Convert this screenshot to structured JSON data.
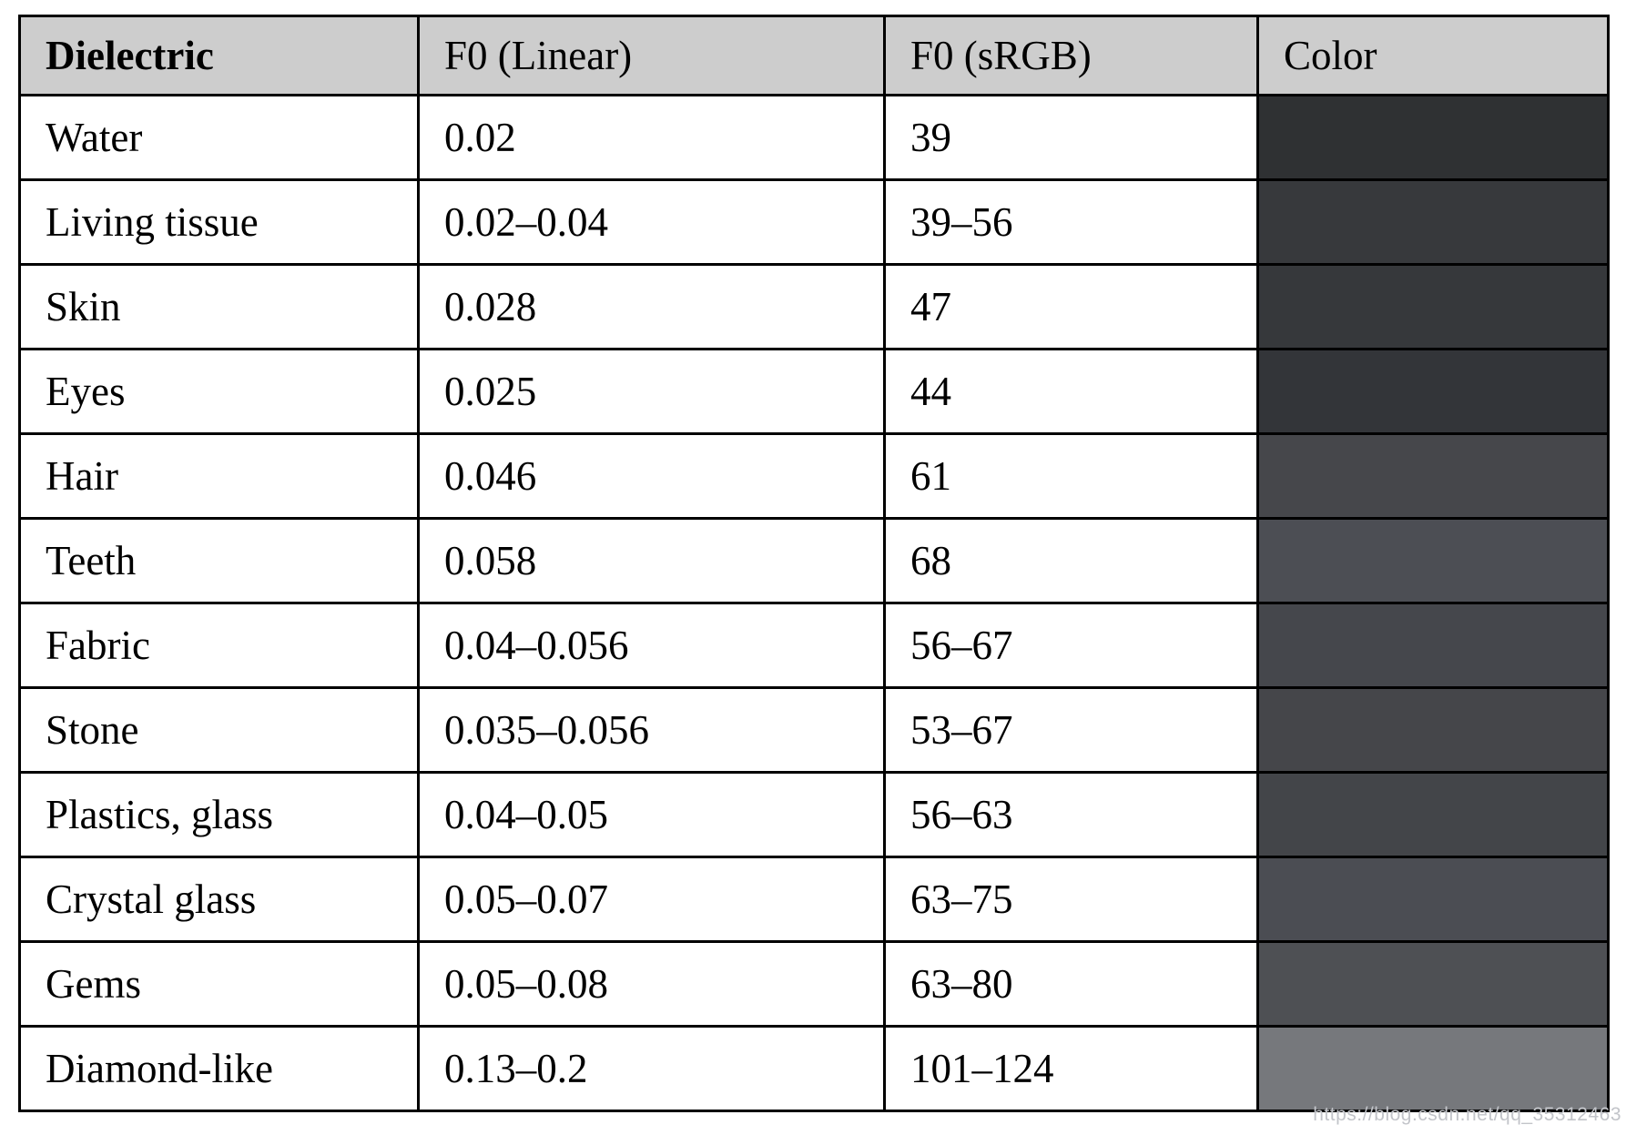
{
  "chart_data": {
    "type": "table",
    "title": "",
    "columns": [
      "Dielectric",
      "F0 (Linear)",
      "F0 (sRGB)",
      "Color"
    ],
    "rows": [
      {
        "dielectric": "Water",
        "f0_linear": "0.02",
        "f0_srgb": "39",
        "color_hex": "#2f3133"
      },
      {
        "dielectric": "Living tissue",
        "f0_linear": "0.02–0.04",
        "f0_srgb": "39–56",
        "color_hex": "#37393c"
      },
      {
        "dielectric": "Skin",
        "f0_linear": "0.028",
        "f0_srgb": "47",
        "color_hex": "#36383b"
      },
      {
        "dielectric": "Eyes",
        "f0_linear": "0.025",
        "f0_srgb": "44",
        "color_hex": "#333539"
      },
      {
        "dielectric": "Hair",
        "f0_linear": "0.046",
        "f0_srgb": "61",
        "color_hex": "#46474b"
      },
      {
        "dielectric": "Teeth",
        "f0_linear": "0.058",
        "f0_srgb": "68",
        "color_hex": "#4c4e54"
      },
      {
        "dielectric": "Fabric",
        "f0_linear": "0.04–0.056",
        "f0_srgb": "56–67",
        "color_hex": "#45474c"
      },
      {
        "dielectric": "Stone",
        "f0_linear": "0.035–0.056",
        "f0_srgb": "53–67",
        "color_hex": "#45464a"
      },
      {
        "dielectric": "Plastics, glass",
        "f0_linear": "0.04–0.05",
        "f0_srgb": "56–63",
        "color_hex": "#434549"
      },
      {
        "dielectric": "Crystal glass",
        "f0_linear": "0.05–0.07",
        "f0_srgb": "63–75",
        "color_hex": "#4b4d53"
      },
      {
        "dielectric": "Gems",
        "f0_linear": "0.05–0.08",
        "f0_srgb": "63–80",
        "color_hex": "#4e5054"
      },
      {
        "dielectric": "Diamond-like",
        "f0_linear": "0.13–0.2",
        "f0_srgb": "101–124",
        "color_hex": "#76787c"
      }
    ]
  },
  "table": {
    "headers": [
      "Dielectric",
      "F0 (Linear)",
      "F0 (sRGB)",
      "Color"
    ],
    "header_bg": "#cdcdcd",
    "border_color": "#000000"
  },
  "watermark": {
    "text": "https://blog.csdn.net/qq_35312463",
    "color": "#c2c4c9"
  }
}
